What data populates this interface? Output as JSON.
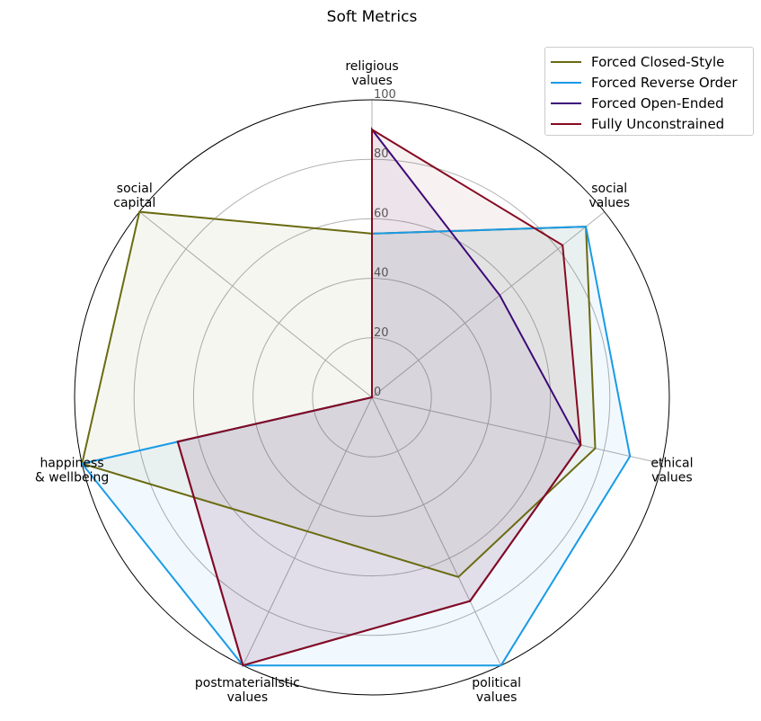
{
  "chart_data": {
    "type": "radar",
    "title": "Soft Metrics",
    "axes": [
      [
        "religious",
        "values"
      ],
      [
        "social",
        "values"
      ],
      [
        "ethical",
        "values"
      ],
      [
        "political",
        "values"
      ],
      [
        "postmaterialistic",
        "values"
      ],
      [
        "happiness",
        "& wellbeing"
      ],
      [
        "social",
        "capital"
      ]
    ],
    "radial_range": [
      0,
      100
    ],
    "radial_ticks": [
      "0",
      "20",
      "40",
      "60",
      "80",
      "100"
    ],
    "tick_values": [
      0,
      20,
      40,
      60,
      80,
      100
    ],
    "grid": true,
    "legend_position": "top-right",
    "series": [
      {
        "name": "Forced Closed-Style",
        "color": "#6b6b12",
        "values": [
          55,
          92,
          77,
          67,
          50,
          100,
          100
        ]
      },
      {
        "name": "Forced Reverse Order",
        "color": "#1a9be6",
        "values": [
          55,
          92,
          89,
          100,
          100,
          100,
          0
        ]
      },
      {
        "name": "Forced Open-Ended",
        "color": "#3c0a78",
        "values": [
          90,
          55,
          72,
          76,
          100,
          67,
          0
        ]
      },
      {
        "name": "Fully Unconstrained",
        "color": "#860a20",
        "values": [
          90,
          82,
          72,
          76,
          100,
          67,
          0
        ]
      }
    ]
  }
}
